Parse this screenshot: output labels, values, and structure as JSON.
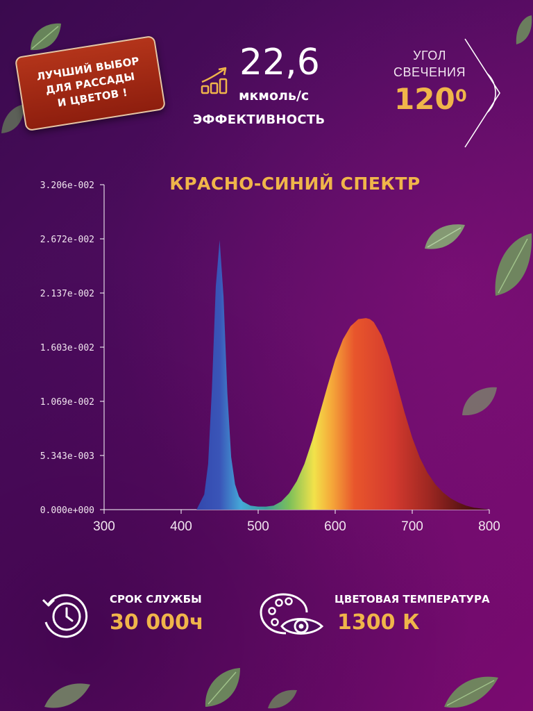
{
  "badge": {
    "lines": [
      "ЛУЧШИЙ ВЫБОР",
      "ДЛЯ РАССАДЫ",
      "И ЦВЕТОВ !"
    ]
  },
  "efficiency": {
    "value": "22,6",
    "unit": "мкмоль/с",
    "label": "ЭФФЕКТИВНОСТЬ",
    "icon": "growth-chart-icon"
  },
  "beam_angle": {
    "label_line1": "УГОЛ",
    "label_line2": "СВЕЧЕНИЯ",
    "value": "120",
    "unit": "0",
    "icon": "angle-icon"
  },
  "lifetime": {
    "label": "СРОК СЛУЖБЫ",
    "value": "30 000ч",
    "icon": "clock-cycle-icon"
  },
  "color_temperature": {
    "label": "ЦВЕТОВАЯ ТЕМПЕРАТУРА",
    "value": "1300 К",
    "icon": "palette-eye-icon"
  },
  "colors": {
    "accent": "#f0b54a",
    "badge": "#a02a14",
    "background": "#4e0c5e"
  },
  "chart_data": {
    "type": "area",
    "title": "КРАСНО-СИНИЙ СПЕКТР",
    "xlabel": "",
    "ylabel": "",
    "xlim": [
      300,
      800
    ],
    "ylim": [
      0,
      0.03206
    ],
    "x_ticks": [
      "300",
      "400",
      "500",
      "600",
      "700",
      "800"
    ],
    "y_ticks": [
      "0.000e+000",
      "5.343e-003",
      "1.069e-002",
      "1.603e-002",
      "2.137e-002",
      "2.672e-002",
      "3.206e-002"
    ],
    "grid": false,
    "x": [
      420,
      430,
      435,
      440,
      445,
      450,
      455,
      460,
      465,
      470,
      475,
      480,
      490,
      500,
      510,
      520,
      530,
      540,
      550,
      560,
      570,
      580,
      590,
      600,
      610,
      620,
      630,
      640,
      645,
      650,
      660,
      670,
      680,
      690,
      700,
      710,
      720,
      730,
      740,
      750,
      760,
      770,
      780,
      790,
      800
    ],
    "series": [
      {
        "values": [
          0.0,
          0.0015,
          0.0045,
          0.012,
          0.022,
          0.0266,
          0.021,
          0.0115,
          0.0052,
          0.0025,
          0.0013,
          0.0008,
          0.0004,
          0.0003,
          0.0003,
          0.0004,
          0.0008,
          0.0016,
          0.0028,
          0.0045,
          0.0068,
          0.0095,
          0.0122,
          0.0148,
          0.0168,
          0.0181,
          0.0188,
          0.0189,
          0.0188,
          0.0185,
          0.0172,
          0.0151,
          0.0124,
          0.0096,
          0.0071,
          0.0051,
          0.0036,
          0.0025,
          0.0017,
          0.0011,
          0.0007,
          0.0004,
          0.0002,
          0.0001,
          0.0
        ]
      }
    ]
  }
}
